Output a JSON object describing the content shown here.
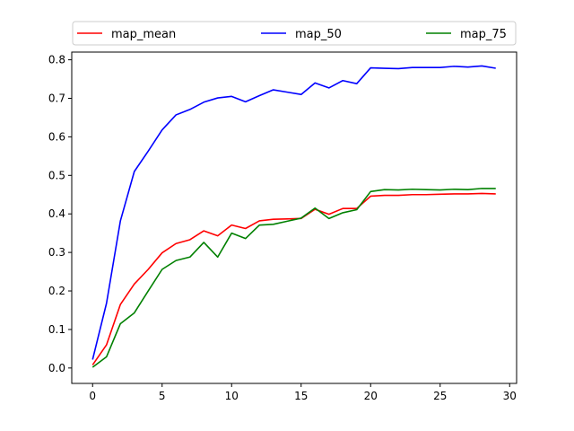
{
  "chart_data": {
    "type": "line",
    "title": "",
    "xlabel": "",
    "ylabel": "",
    "xlim": [
      -1.5,
      30.5
    ],
    "ylim": [
      -0.04,
      0.82
    ],
    "xticks": [
      0,
      5,
      10,
      15,
      20,
      25,
      30
    ],
    "xtick_labels": [
      "0",
      "5",
      "10",
      "15",
      "20",
      "25",
      "30"
    ],
    "yticks": [
      0.0,
      0.1,
      0.2,
      0.3,
      0.4,
      0.5,
      0.6,
      0.7,
      0.8
    ],
    "ytick_labels": [
      "0.0",
      "0.1",
      "0.2",
      "0.3",
      "0.4",
      "0.5",
      "0.6",
      "0.7",
      "0.8"
    ],
    "grid": false,
    "legend_position": "top, above plot",
    "x": [
      0,
      1,
      2,
      3,
      4,
      5,
      6,
      7,
      8,
      9,
      10,
      11,
      12,
      13,
      14,
      15,
      16,
      17,
      18,
      19,
      20,
      21,
      22,
      23,
      24,
      25,
      26,
      27,
      28,
      29
    ],
    "series": [
      {
        "name": "map_mean",
        "color": "#ff0000",
        "values": [
          0.008,
          0.06,
          0.165,
          0.218,
          0.256,
          0.299,
          0.323,
          0.333,
          0.356,
          0.343,
          0.371,
          0.362,
          0.382,
          0.386,
          0.387,
          0.388,
          0.412,
          0.399,
          0.414,
          0.414,
          0.446,
          0.448,
          0.448,
          0.45,
          0.45,
          0.451,
          0.452,
          0.452,
          0.453,
          0.452
        ]
      },
      {
        "name": "map_50",
        "color": "#0000ff",
        "values": [
          0.022,
          0.168,
          0.382,
          0.51,
          0.563,
          0.618,
          0.657,
          0.671,
          0.69,
          0.701,
          0.705,
          0.691,
          0.707,
          0.722,
          0.716,
          0.71,
          0.74,
          0.727,
          0.746,
          0.738,
          0.779,
          0.778,
          0.777,
          0.78,
          0.78,
          0.78,
          0.783,
          0.781,
          0.784,
          0.778
        ]
      },
      {
        "name": "map_75",
        "color": "#008000",
        "values": [
          0.002,
          0.029,
          0.115,
          0.143,
          0.2,
          0.256,
          0.279,
          0.288,
          0.326,
          0.288,
          0.35,
          0.336,
          0.371,
          0.373,
          0.381,
          0.389,
          0.415,
          0.388,
          0.403,
          0.411,
          0.458,
          0.463,
          0.462,
          0.464,
          0.463,
          0.462,
          0.464,
          0.463,
          0.466,
          0.466
        ]
      }
    ]
  }
}
